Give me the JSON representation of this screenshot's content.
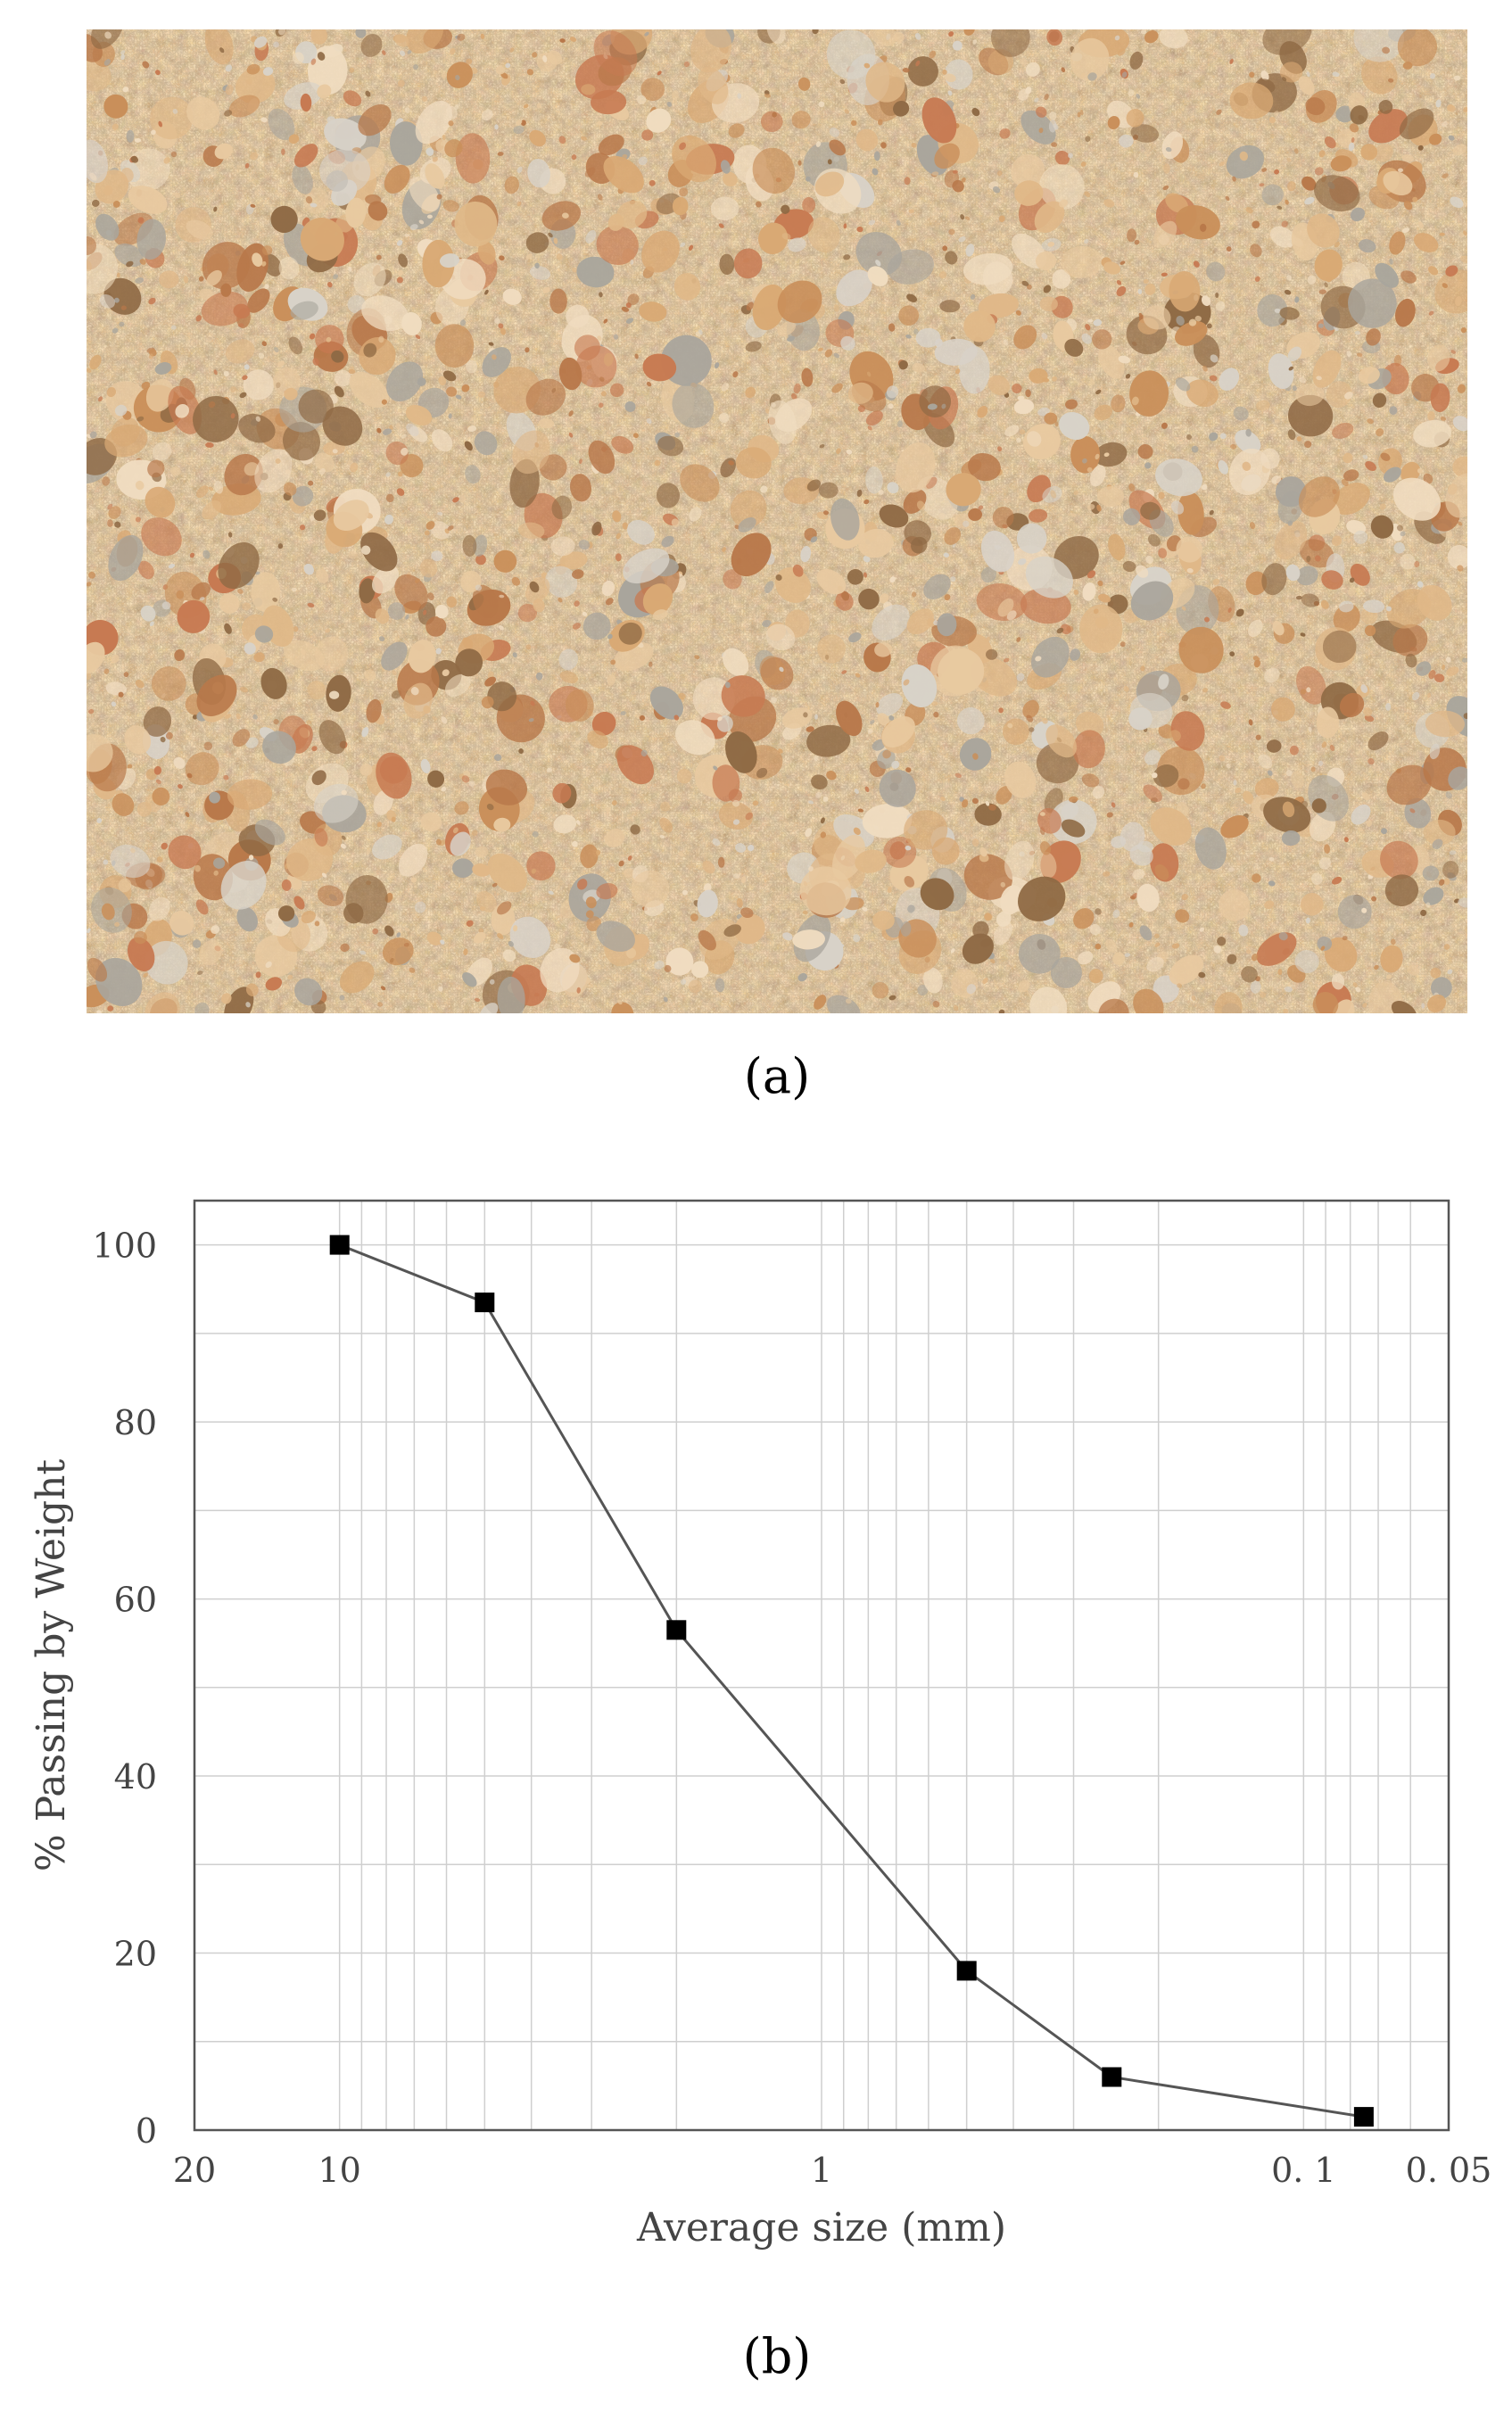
{
  "figure": {
    "panel_a_caption": "(a)",
    "panel_b_caption": "(b)"
  },
  "photo": {
    "subject": "sand-gravel-aggregate",
    "base_color": "#b07a45"
  },
  "chart_data": {
    "type": "line",
    "title": "",
    "xlabel": "Average size (mm)",
    "ylabel": "% Passing by Weight",
    "x_scale": "log",
    "x_reversed": true,
    "xlim": [
      20,
      0.05
    ],
    "ylim": [
      0,
      105
    ],
    "grid": true,
    "x_ticks": [
      {
        "value": 20,
        "label": "20"
      },
      {
        "value": 10,
        "label": "10"
      },
      {
        "value": 1,
        "label": "1"
      },
      {
        "value": 0.1,
        "label": "0. 1"
      },
      {
        "value": 0.05,
        "label": "0. 05"
      }
    ],
    "y_ticks": [
      0,
      20,
      40,
      60,
      80,
      100
    ],
    "series": [
      {
        "marker": "square",
        "color": "#000000",
        "line_color": "#555555",
        "x": [
          10,
          5,
          2,
          0.5,
          0.25,
          0.075
        ],
        "y": [
          100,
          93.5,
          56.5,
          18,
          6,
          1.5
        ]
      }
    ]
  }
}
